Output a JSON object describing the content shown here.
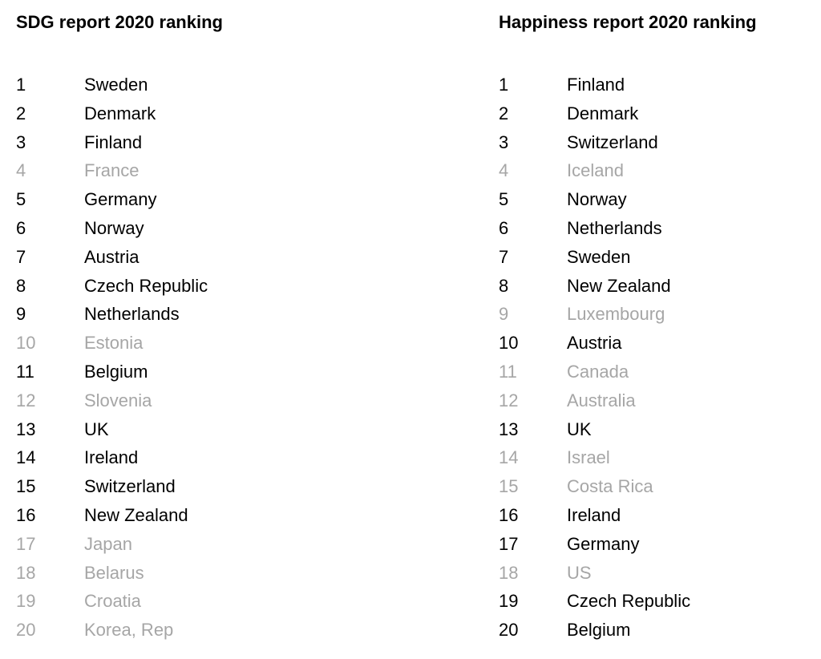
{
  "colors": {
    "text": "#000000",
    "muted": "#a6a6a6"
  },
  "columns": [
    {
      "title": "SDG report 2020 ranking",
      "rows": [
        {
          "rank": 1,
          "country": "Sweden",
          "muted": false
        },
        {
          "rank": 2,
          "country": "Denmark",
          "muted": false
        },
        {
          "rank": 3,
          "country": "Finland",
          "muted": false
        },
        {
          "rank": 4,
          "country": "France",
          "muted": true
        },
        {
          "rank": 5,
          "country": "Germany",
          "muted": false
        },
        {
          "rank": 6,
          "country": "Norway",
          "muted": false
        },
        {
          "rank": 7,
          "country": "Austria",
          "muted": false
        },
        {
          "rank": 8,
          "country": "Czech Republic",
          "muted": false
        },
        {
          "rank": 9,
          "country": "Netherlands",
          "muted": false
        },
        {
          "rank": 10,
          "country": "Estonia",
          "muted": true
        },
        {
          "rank": 11,
          "country": "Belgium",
          "muted": false
        },
        {
          "rank": 12,
          "country": "Slovenia",
          "muted": true
        },
        {
          "rank": 13,
          "country": "UK",
          "muted": false
        },
        {
          "rank": 14,
          "country": "Ireland",
          "muted": false
        },
        {
          "rank": 15,
          "country": "Switzerland",
          "muted": false
        },
        {
          "rank": 16,
          "country": "New Zealand",
          "muted": false
        },
        {
          "rank": 17,
          "country": "Japan",
          "muted": true
        },
        {
          "rank": 18,
          "country": "Belarus",
          "muted": true
        },
        {
          "rank": 19,
          "country": "Croatia",
          "muted": true
        },
        {
          "rank": 20,
          "country": "Korea, Rep",
          "muted": true
        }
      ]
    },
    {
      "title": "Happiness report 2020 ranking",
      "rows": [
        {
          "rank": 1,
          "country": "Finland",
          "muted": false
        },
        {
          "rank": 2,
          "country": "Denmark",
          "muted": false
        },
        {
          "rank": 3,
          "country": "Switzerland",
          "muted": false
        },
        {
          "rank": 4,
          "country": "Iceland",
          "muted": true
        },
        {
          "rank": 5,
          "country": "Norway",
          "muted": false
        },
        {
          "rank": 6,
          "country": "Netherlands",
          "muted": false
        },
        {
          "rank": 7,
          "country": "Sweden",
          "muted": false
        },
        {
          "rank": 8,
          "country": "New Zealand",
          "muted": false
        },
        {
          "rank": 9,
          "country": "Luxembourg",
          "muted": true
        },
        {
          "rank": 10,
          "country": "Austria",
          "muted": false
        },
        {
          "rank": 11,
          "country": "Canada",
          "muted": true
        },
        {
          "rank": 12,
          "country": "Australia",
          "muted": true
        },
        {
          "rank": 13,
          "country": "UK",
          "muted": false
        },
        {
          "rank": 14,
          "country": "Israel",
          "muted": true
        },
        {
          "rank": 15,
          "country": "Costa Rica",
          "muted": true
        },
        {
          "rank": 16,
          "country": "Ireland",
          "muted": false
        },
        {
          "rank": 17,
          "country": "Germany",
          "muted": false
        },
        {
          "rank": 18,
          "country": "US",
          "muted": true
        },
        {
          "rank": 19,
          "country": "Czech Republic",
          "muted": false
        },
        {
          "rank": 20,
          "country": "Belgium",
          "muted": false
        }
      ]
    }
  ]
}
